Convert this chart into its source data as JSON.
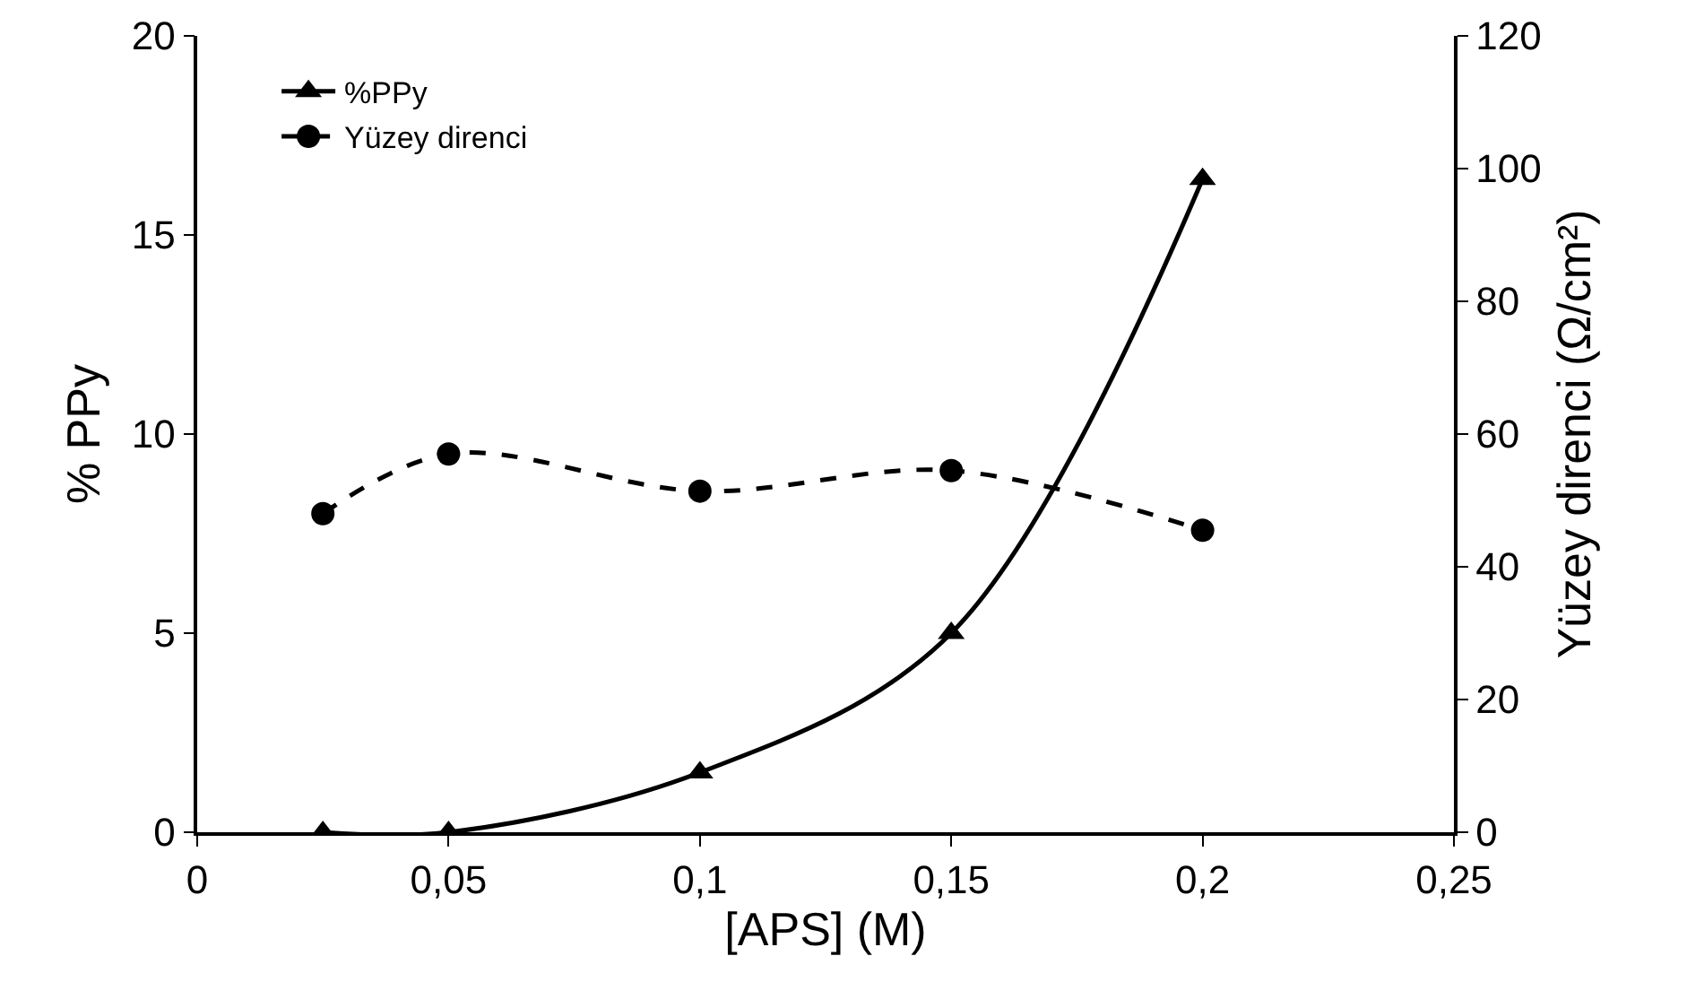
{
  "chart_data": {
    "type": "line",
    "xlabel": "[APS] (M)",
    "ylabel": "% PPy",
    "y2label": "Yüzey direnci (Ω/cm²)",
    "x": [
      0.025,
      0.05,
      0.1,
      0.15,
      0.2
    ],
    "series": [
      {
        "name": "%PPy",
        "color": "#000000",
        "values": [
          0,
          0,
          1.5,
          5,
          16.4
        ],
        "marker": "triangle",
        "line_style": "solid"
      },
      {
        "name": "Yüzey direnci",
        "color": "#000000",
        "values": [
          48,
          57,
          51.4,
          54.5,
          45.5
        ],
        "marker": "circle",
        "line_style": "dashed",
        "axis": "y2"
      }
    ],
    "xlim": [
      0,
      0.25
    ],
    "xticks": [
      0,
      {
        "value": 0.05,
        "label": "0,05"
      },
      {
        "value": 0.1,
        "label": "0,1"
      },
      {
        "value": 0.15,
        "label": "0,15"
      },
      {
        "value": 0.2,
        "label": "0,2"
      },
      {
        "value": 0.25,
        "label": "0,25"
      }
    ],
    "ylim": [
      0,
      20
    ],
    "yticks": [
      0,
      5,
      10,
      15,
      20
    ],
    "y2lim": [
      0,
      120
    ],
    "y2ticks": [
      0,
      20,
      40,
      60,
      80,
      100,
      120
    ],
    "grid": false,
    "legend": "top left"
  }
}
